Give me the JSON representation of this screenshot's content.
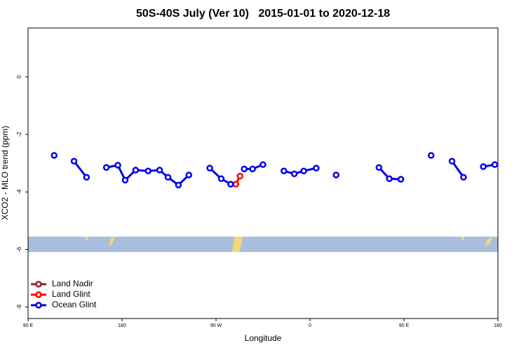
{
  "chart_data": {
    "type": "line",
    "title": "50S-40S July (Ver 10)   2015-01-01 to 2020-12-18",
    "x_label": "Longitude",
    "y_label": "XCO2 - MLO trend (ppm)",
    "xlim": [
      90,
      540
    ],
    "ylim": [
      -8.4,
      1.7
    ],
    "xticks": [
      {
        "value": 90,
        "label": "90 E"
      },
      {
        "value": 180,
        "label": "180"
      },
      {
        "value": 270,
        "label": "90 W"
      },
      {
        "value": 360,
        "label": "0"
      },
      {
        "value": 450,
        "label": "90 E"
      },
      {
        "value": 540,
        "label": "180"
      }
    ],
    "yticks": [
      0,
      -2,
      -4,
      -6,
      -8
    ],
    "legend": "bottom-left",
    "series": [
      {
        "name": "Land Nadir",
        "color": "#8b2323",
        "x": [],
        "values": []
      },
      {
        "name": "Land Glint",
        "color": "#ff0000",
        "x": [
          289,
          293
        ],
        "values": [
          -3.73,
          -3.45
        ]
      },
      {
        "name": "Ocean Glint",
        "color": "#0000ee",
        "x": [
          115,
          124,
          134,
          146,
          155,
          165,
          176,
          183,
          193,
          205,
          216,
          224,
          234,
          244,
          254,
          264,
          275,
          284,
          290,
          297,
          305,
          315,
          325,
          335,
          345,
          354,
          366,
          375,
          385,
          405,
          426,
          436,
          447,
          460,
          476,
          486,
          496,
          507,
          516,
          526,
          537
        ],
        "values": [
          -2.73,
          null,
          -2.93,
          -3.49,
          null,
          -3.15,
          -3.07,
          -3.59,
          -3.24,
          -3.27,
          -3.24,
          -3.49,
          -3.76,
          -3.41,
          null,
          -3.17,
          -3.54,
          -3.73,
          null,
          -3.2,
          -3.2,
          -3.05,
          null,
          -3.27,
          -3.37,
          -3.27,
          -3.17,
          null,
          -3.41,
          null,
          -3.15,
          -3.54,
          -3.56,
          null,
          -2.73,
          null,
          -2.93,
          -3.49,
          null,
          -3.12,
          -3.05
        ]
      }
    ]
  }
}
